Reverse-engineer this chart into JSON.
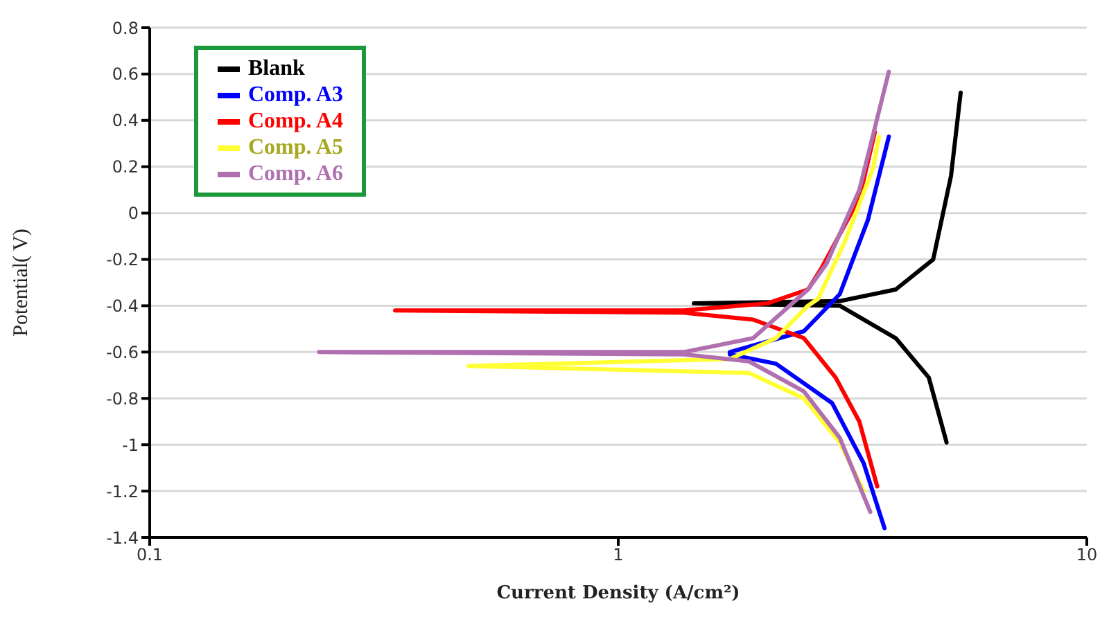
{
  "chart_data": {
    "type": "line",
    "xlabel": "Current Density (A/cm²)",
    "ylabel": "Potential( V)",
    "log": "x",
    "xlim": [
      0.1,
      10
    ],
    "xticks": [
      0.1,
      1,
      10
    ],
    "ylim": [
      -1.4,
      0.8
    ],
    "yticks": [
      -1.4,
      -1.2,
      -1,
      -0.8,
      -0.6,
      -0.4,
      -0.2,
      0,
      0.2,
      0.4,
      0.6,
      0.8
    ],
    "grid": "y",
    "legend": "top left",
    "marker": "none",
    "line_style": "solid",
    "series": [
      {
        "name": "Blank",
        "color": "#000000",
        "x": [
          5.38,
          5.13,
          4.7,
          3.91,
          2.97,
          1.45,
          2.97,
          3.91,
          4.6,
          5.02
        ],
        "values": [
          0.52,
          0.16,
          -0.2,
          -0.33,
          -0.38,
          -0.39,
          -0.4,
          -0.54,
          -0.71,
          -0.99
        ]
      },
      {
        "name": "Comp. A3",
        "color": "#0000ff",
        "x": [
          3.78,
          3.41,
          2.97,
          2.49,
          1.73,
          1.73,
          2.17,
          2.86,
          3.34,
          3.7
        ],
        "values": [
          0.33,
          -0.03,
          -0.35,
          -0.51,
          -0.6,
          -0.61,
          -0.65,
          -0.82,
          -1.08,
          -1.36
        ]
      },
      {
        "name": "Comp. A4",
        "color": "#ff0000",
        "x": [
          3.53,
          3.27,
          2.72,
          2.54,
          2.08,
          1.38,
          0.334,
          1.38,
          1.94,
          2.49,
          2.91,
          3.27,
          3.57
        ],
        "values": [
          0.35,
          0.065,
          -0.235,
          -0.33,
          -0.39,
          -0.42,
          -0.42,
          -0.43,
          -0.46,
          -0.54,
          -0.71,
          -0.9,
          -1.18
        ]
      },
      {
        "name": "Comp. A5",
        "color": "#ffff33",
        "x": [
          3.6,
          3.5,
          3.05,
          2.67,
          2.54,
          2.17,
          1.73,
          0.479,
          1.9,
          2.49,
          2.97,
          3.34
        ],
        "values": [
          0.33,
          0.195,
          -0.12,
          -0.37,
          -0.4,
          -0.54,
          -0.63,
          -0.66,
          -0.69,
          -0.8,
          -0.99,
          -1.2
        ]
      },
      {
        "name": "Comp. A6",
        "color": "#b070b0",
        "x": [
          3.78,
          3.27,
          2.78,
          2.54,
          1.94,
          1.38,
          0.23,
          1.38,
          1.9,
          2.49,
          2.97,
          3.45
        ],
        "values": [
          0.61,
          0.1,
          -0.22,
          -0.33,
          -0.54,
          -0.6,
          -0.6,
          -0.61,
          -0.64,
          -0.77,
          -0.97,
          -1.29
        ]
      }
    ]
  }
}
